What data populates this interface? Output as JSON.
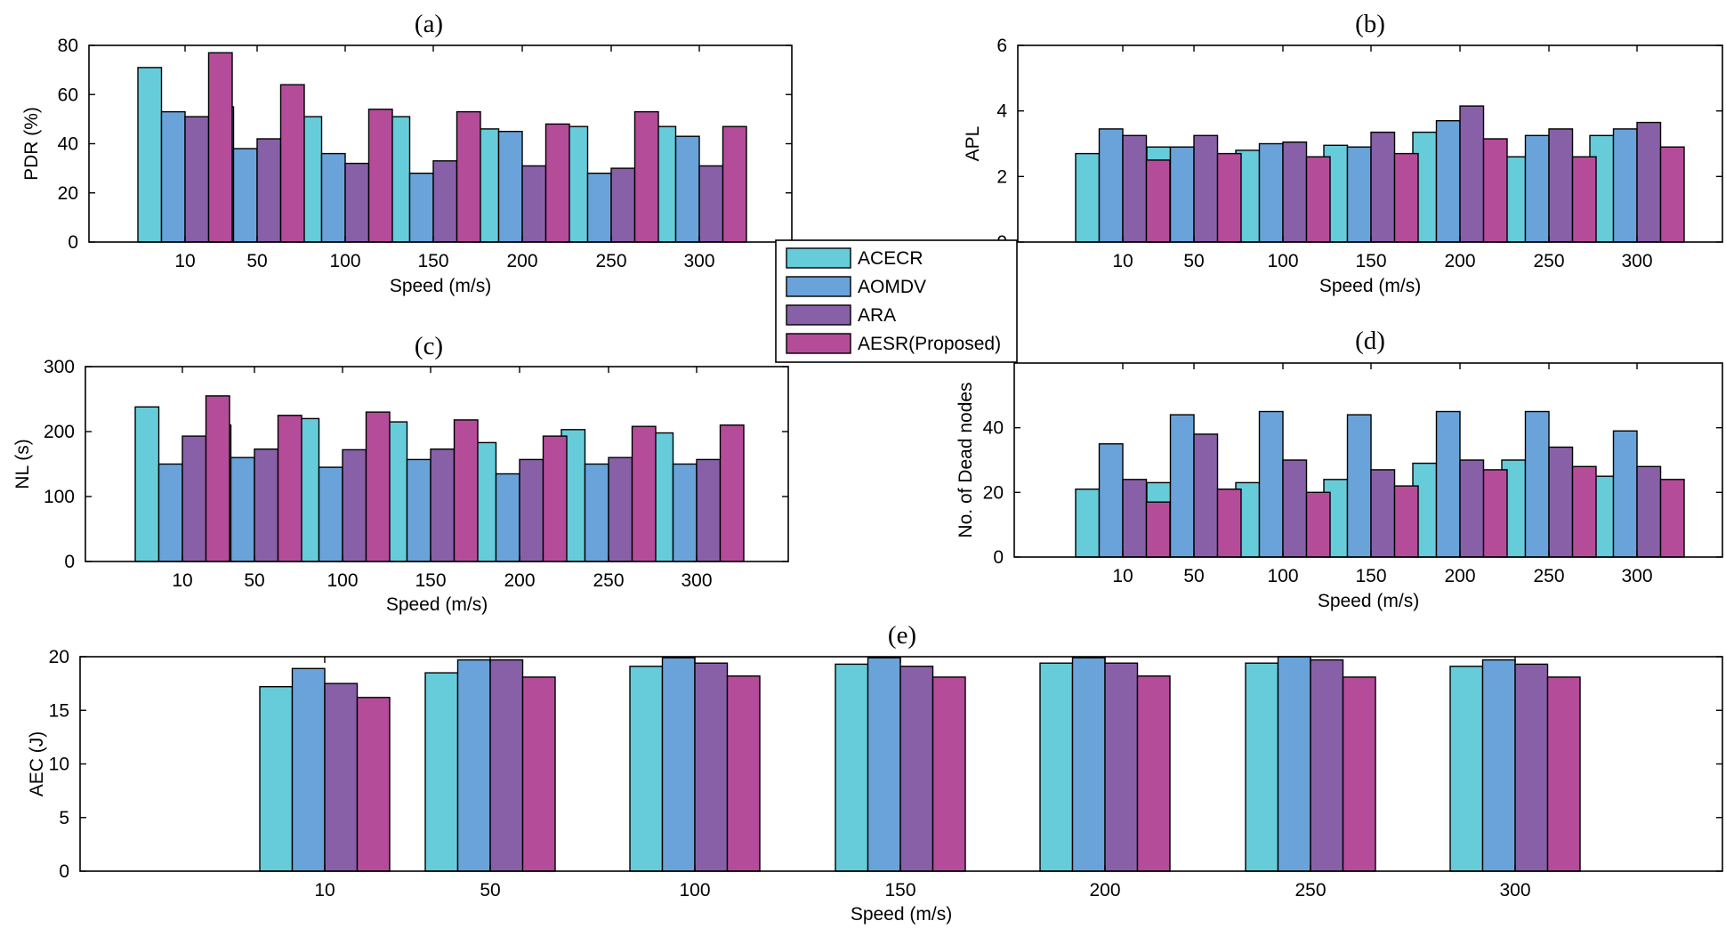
{
  "colors": {
    "ACECR": "#66CCDA",
    "AOMDV": "#6AA3D9",
    "ARA": "#8860A8",
    "AESR(Proposed)": "#B54C9A"
  },
  "legend": [
    "ACECR",
    "AOMDV",
    "ARA",
    "AESR(Proposed)"
  ],
  "chart_data": [
    {
      "id": "a",
      "type": "bar",
      "title": "(a)",
      "xlabel": "Speed (m/s)",
      "ylabel": "PDR (%)",
      "categories": [
        "10",
        "50",
        "100",
        "150",
        "200",
        "250",
        "300"
      ],
      "ylim": [
        0,
        80
      ],
      "yticks": [
        0,
        20,
        40,
        60,
        80
      ],
      "series": [
        {
          "name": "ACECR",
          "values": [
            71,
            55,
            51,
            51,
            46,
            47,
            47
          ]
        },
        {
          "name": "AOMDV",
          "values": [
            53,
            38,
            36,
            28,
            45,
            28,
            43
          ]
        },
        {
          "name": "ARA",
          "values": [
            51,
            42,
            32,
            33,
            31,
            30,
            31
          ]
        },
        {
          "name": "AESR(Proposed)",
          "values": [
            77,
            64,
            54,
            53,
            48,
            53,
            47
          ]
        }
      ]
    },
    {
      "id": "b",
      "type": "bar",
      "title": "(b)",
      "xlabel": "Speed (m/s)",
      "ylabel": "APL",
      "categories": [
        "10",
        "50",
        "100",
        "150",
        "200",
        "250",
        "300"
      ],
      "ylim": [
        0,
        6
      ],
      "yticks": [
        0,
        2,
        4,
        6
      ],
      "series": [
        {
          "name": "ACECR",
          "values": [
            2.7,
            2.9,
            2.8,
            2.95,
            3.35,
            2.6,
            3.25
          ]
        },
        {
          "name": "AOMDV",
          "values": [
            3.45,
            2.9,
            3.0,
            2.9,
            3.7,
            3.25,
            3.45
          ]
        },
        {
          "name": "ARA",
          "values": [
            3.25,
            3.25,
            3.05,
            3.35,
            4.15,
            3.45,
            3.65
          ]
        },
        {
          "name": "AESR(Proposed)",
          "values": [
            2.5,
            2.7,
            2.6,
            2.7,
            3.15,
            2.6,
            2.9
          ]
        }
      ]
    },
    {
      "id": "c",
      "type": "bar",
      "title": "(c)",
      "xlabel": "Speed (m/s)",
      "ylabel": "NL (s)",
      "categories": [
        "10",
        "50",
        "100",
        "150",
        "200",
        "250",
        "300"
      ],
      "ylim": [
        0,
        300
      ],
      "yticks": [
        0,
        100,
        200,
        300
      ],
      "series": [
        {
          "name": "ACECR",
          "values": [
            238,
            210,
            220,
            215,
            183,
            203,
            198
          ]
        },
        {
          "name": "AOMDV",
          "values": [
            150,
            160,
            145,
            157,
            135,
            150,
            150
          ]
        },
        {
          "name": "ARA",
          "values": [
            193,
            173,
            172,
            173,
            157,
            160,
            157
          ]
        },
        {
          "name": "AESR(Proposed)",
          "values": [
            255,
            225,
            230,
            218,
            193,
            208,
            210
          ]
        }
      ]
    },
    {
      "id": "d",
      "type": "bar",
      "title": "(d)",
      "xlabel": "Speed (m/s)",
      "ylabel": "No. of Dead nodes",
      "categories": [
        "10",
        "50",
        "100",
        "150",
        "200",
        "250",
        "300"
      ],
      "ylim": [
        0,
        60
      ],
      "yticks": [
        0,
        20,
        40
      ],
      "series": [
        {
          "name": "ACECR",
          "values": [
            21,
            23,
            23,
            24,
            29,
            30,
            25
          ]
        },
        {
          "name": "AOMDV",
          "values": [
            35,
            44,
            45,
            44,
            45,
            45,
            39
          ]
        },
        {
          "name": "ARA",
          "values": [
            24,
            38,
            30,
            27,
            30,
            34,
            28
          ]
        },
        {
          "name": "AESR(Proposed)",
          "values": [
            17,
            21,
            20,
            22,
            27,
            28,
            24
          ]
        }
      ]
    },
    {
      "id": "e",
      "type": "bar",
      "title": "(e)",
      "xlabel": "Speed (m/s)",
      "ylabel": "AEC (J)",
      "categories": [
        "10",
        "50",
        "100",
        "150",
        "200",
        "250",
        "300"
      ],
      "ylim": [
        0,
        20
      ],
      "yticks": [
        0,
        5,
        10,
        15,
        20
      ],
      "series": [
        {
          "name": "ACECR",
          "values": [
            17.2,
            18.5,
            19.1,
            19.3,
            19.4,
            19.4,
            19.1
          ]
        },
        {
          "name": "AOMDV",
          "values": [
            18.9,
            19.7,
            19.9,
            19.9,
            19.9,
            20.0,
            19.7
          ]
        },
        {
          "name": "ARA",
          "values": [
            17.5,
            19.7,
            19.4,
            19.1,
            19.4,
            19.7,
            19.3
          ]
        },
        {
          "name": "AESR(Proposed)",
          "values": [
            16.2,
            18.1,
            18.2,
            18.1,
            18.2,
            18.1,
            18.1
          ]
        }
      ]
    }
  ]
}
